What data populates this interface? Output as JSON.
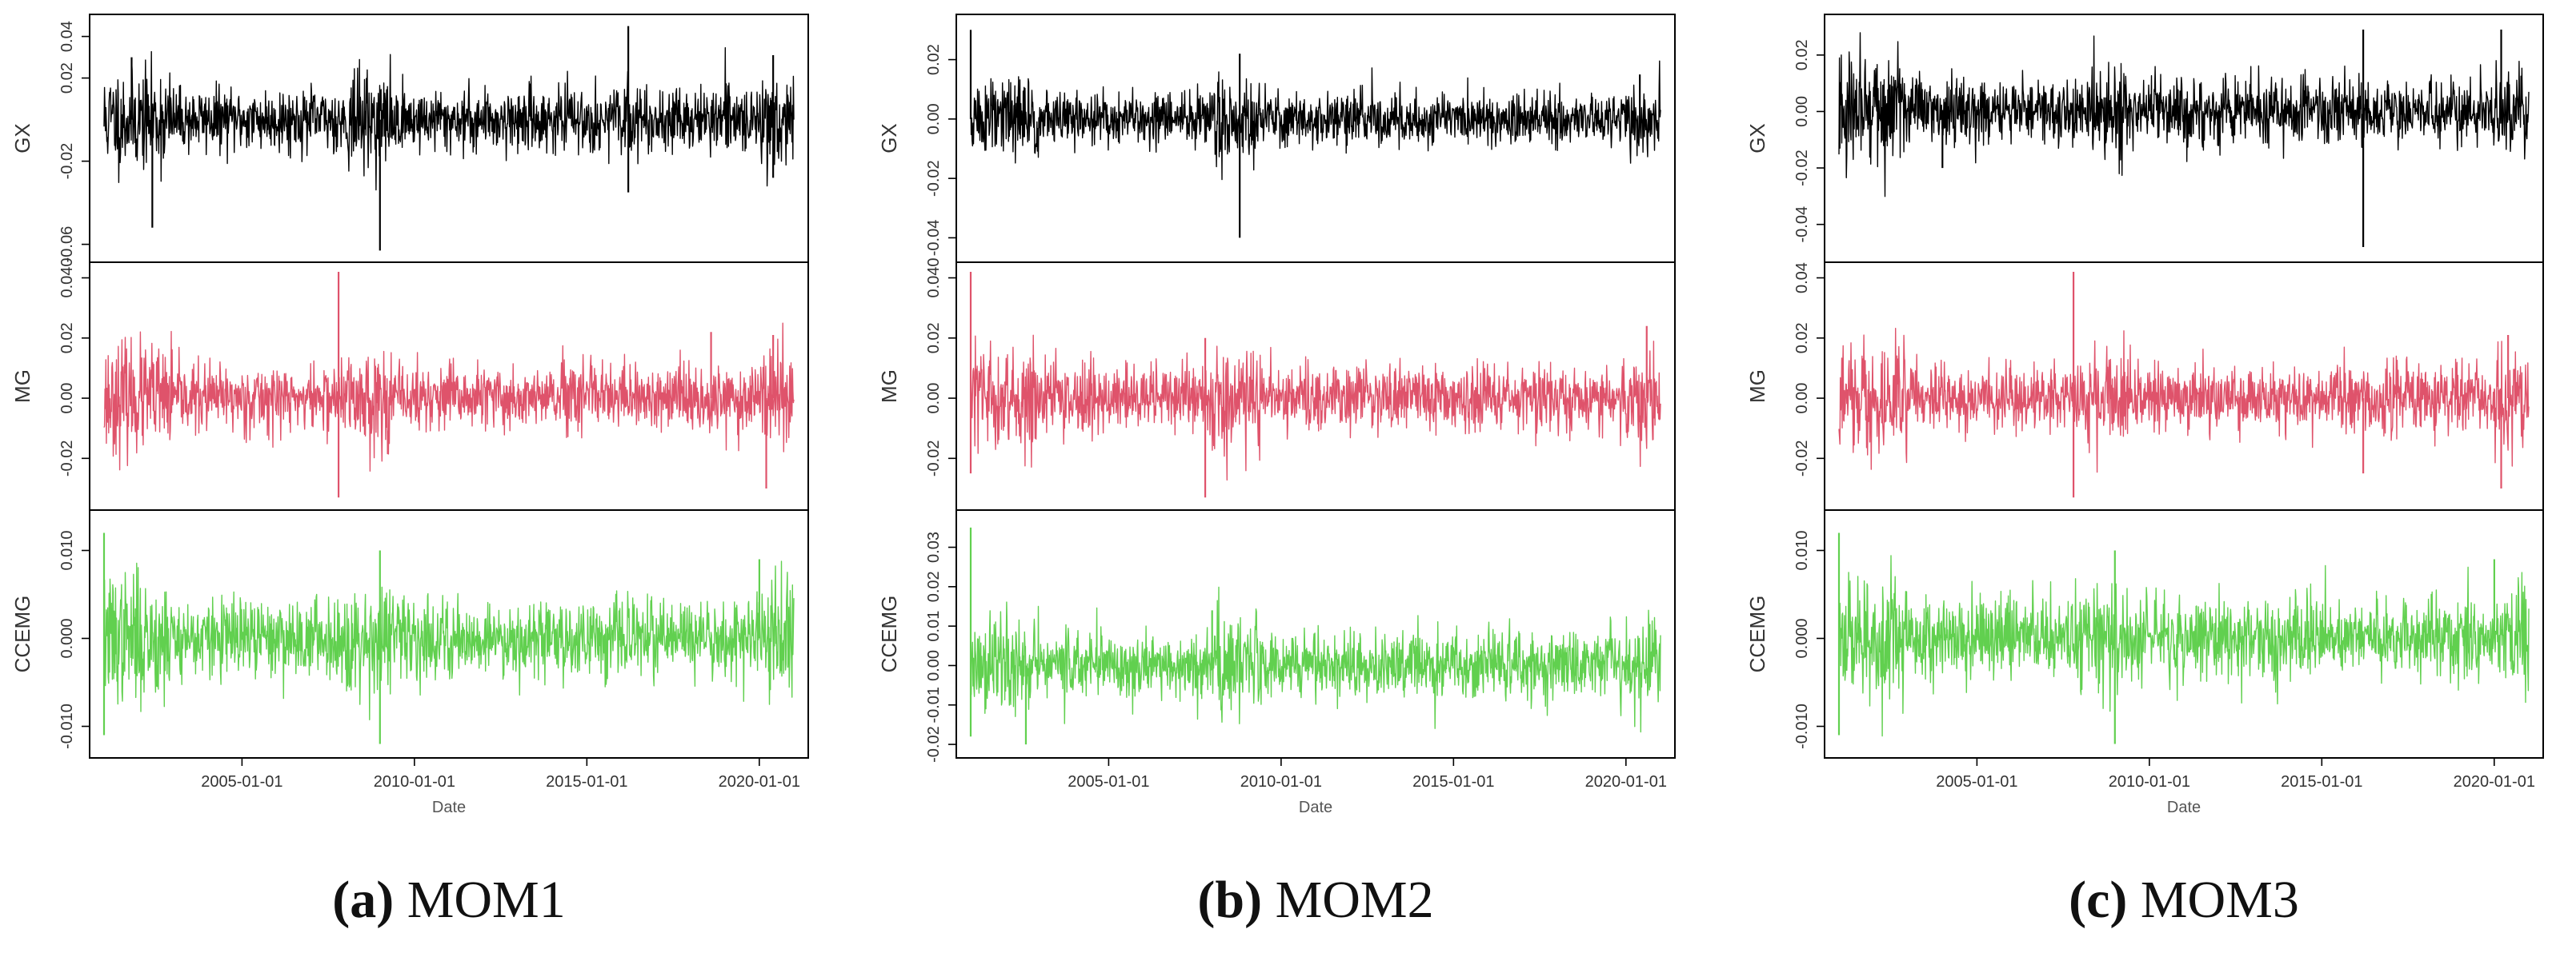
{
  "figure": {
    "panels": [
      {
        "id": "a",
        "caption_letter": "(a)",
        "caption_text": " MOM1",
        "x_ticks": [
          "2005-01-01",
          "2010-01-01",
          "2015-01-01",
          "2020-01-01"
        ],
        "x_axis_label": "Date",
        "rows": [
          {
            "label": "GX",
            "color": "#000000",
            "yrange": [
              -0.064,
              0.046
            ],
            "ticks": [
              -0.06,
              -0.02,
              0.02,
              0.04
            ],
            "tick_labels": [
              "-0.06",
              "-0.02",
              "0.02",
              "0.04"
            ]
          },
          {
            "label": "MG",
            "color": "#df536b",
            "yrange": [
              -0.034,
              0.042
            ],
            "ticks": [
              -0.02,
              0.0,
              0.02,
              0.04
            ],
            "tick_labels": [
              "-0.02",
              "0.00",
              "0.02",
              "0.040"
            ]
          },
          {
            "label": "CCEMG",
            "color": "#61d04f",
            "yrange": [
              -0.0125,
              0.0135
            ],
            "ticks": [
              -0.01,
              0.0,
              0.01
            ],
            "tick_labels": [
              "-0.010",
              "0.000",
              "0.010"
            ]
          }
        ]
      },
      {
        "id": "b",
        "caption_letter": "(b)",
        "caption_text": " MOM2",
        "x_ticks": [
          "2005-01-01",
          "2010-01-01",
          "2015-01-01",
          "2020-01-01"
        ],
        "x_axis_label": "Date",
        "rows": [
          {
            "label": "GX",
            "color": "#000000",
            "yrange": [
              -0.045,
              0.032
            ],
            "ticks": [
              -0.04,
              -0.02,
              0.0,
              0.02
            ],
            "tick_labels": [
              "-0.04",
              "-0.02",
              "0.00",
              "0.02"
            ]
          },
          {
            "label": "MG",
            "color": "#df536b",
            "yrange": [
              -0.034,
              0.042
            ],
            "ticks": [
              -0.02,
              0.0,
              0.02,
              0.04
            ],
            "tick_labels": [
              "-0.02",
              "0.00",
              "0.02",
              "0.040"
            ]
          },
          {
            "label": "CCEMG",
            "color": "#61d04f",
            "yrange": [
              -0.021,
              0.037
            ],
            "ticks": [
              -0.02,
              -0.01,
              0.0,
              0.01,
              0.02,
              0.03
            ],
            "tick_labels": [
              "-0.02",
              "-0.01",
              "0.00",
              "0.01",
              "0.02",
              "0.03"
            ]
          }
        ]
      },
      {
        "id": "c",
        "caption_letter": "(c)",
        "caption_text": " MOM3",
        "x_ticks": [
          "2005-01-01",
          "2010-01-01",
          "2015-01-01",
          "2020-01-01"
        ],
        "x_axis_label": "Date",
        "rows": [
          {
            "label": "GX",
            "color": "#000000",
            "yrange": [
              -0.05,
              0.031
            ],
            "ticks": [
              -0.04,
              -0.02,
              0.0,
              0.02
            ],
            "tick_labels": [
              "-0.04",
              "-0.02",
              "0.00",
              "0.02"
            ]
          },
          {
            "label": "MG",
            "color": "#df536b",
            "yrange": [
              -0.034,
              0.042
            ],
            "ticks": [
              -0.02,
              0.0,
              0.02,
              0.04
            ],
            "tick_labels": [
              "-0.02",
              "0.00",
              "0.02",
              "0.04"
            ]
          },
          {
            "label": "CCEMG",
            "color": "#61d04f",
            "yrange": [
              -0.0125,
              0.0135
            ],
            "ticks": [
              -0.01,
              0.0,
              0.01
            ],
            "tick_labels": [
              "-0.010",
              "0.000",
              "0.010"
            ]
          }
        ]
      }
    ]
  },
  "chart_data": [
    {
      "type": "line",
      "title": "(a) MOM1",
      "xlabel": "Date",
      "x_range": [
        "2001-01-01",
        "2021-01-01"
      ],
      "x_ticks": [
        "2005-01-01",
        "2010-01-01",
        "2015-01-01",
        "2020-01-01"
      ],
      "series": [
        {
          "name": "GX",
          "color": "#000000",
          "ylim": [
            -0.064,
            0.046
          ],
          "yticks": [
            -0.06,
            -0.02,
            0.02,
            0.04
          ],
          "noise_sd": 0.0075,
          "seed": 11,
          "spikes": [
            [
              0.04,
              0.03
            ],
            [
              0.07,
              -0.052
            ],
            [
              0.4,
              -0.063
            ],
            [
              0.76,
              0.045
            ],
            [
              0.76,
              -0.035
            ],
            [
              0.97,
              0.031
            ],
            [
              0.97,
              -0.028
            ]
          ]
        },
        {
          "name": "MG",
          "color": "#df536b",
          "ylim": [
            -0.034,
            0.042
          ],
          "yticks": [
            -0.02,
            0.0,
            0.02,
            0.04
          ],
          "noise_sd": 0.0055,
          "seed": 23,
          "spikes": [
            [
              0.34,
              0.042
            ],
            [
              0.34,
              -0.033
            ],
            [
              0.88,
              0.022
            ],
            [
              0.96,
              -0.03
            ],
            [
              0.97,
              0.021
            ]
          ]
        },
        {
          "name": "CCEMG",
          "color": "#61d04f",
          "ylim": [
            -0.0125,
            0.0135
          ],
          "yticks": [
            -0.01,
            0.0,
            0.01
          ],
          "noise_sd": 0.0022,
          "seed": 37,
          "spikes": [
            [
              0.0,
              0.012
            ],
            [
              0.0,
              -0.011
            ],
            [
              0.4,
              -0.012
            ],
            [
              0.4,
              0.01
            ],
            [
              0.95,
              0.009
            ]
          ]
        }
      ]
    },
    {
      "type": "line",
      "title": "(b) MOM2",
      "xlabel": "Date",
      "x_range": [
        "2001-01-01",
        "2021-01-01"
      ],
      "x_ticks": [
        "2005-01-01",
        "2010-01-01",
        "2015-01-01",
        "2020-01-01"
      ],
      "series": [
        {
          "name": "GX",
          "color": "#000000",
          "ylim": [
            -0.045,
            0.032
          ],
          "yticks": [
            -0.04,
            -0.02,
            0.0,
            0.02
          ],
          "noise_sd": 0.0045,
          "seed": 51,
          "spikes": [
            [
              0.0,
              0.03
            ],
            [
              0.39,
              -0.04
            ],
            [
              0.39,
              0.022
            ],
            [
              0.97,
              0.015
            ]
          ]
        },
        {
          "name": "MG",
          "color": "#df536b",
          "ylim": [
            -0.034,
            0.042
          ],
          "yticks": [
            -0.02,
            0.0,
            0.02,
            0.04
          ],
          "noise_sd": 0.0055,
          "seed": 63,
          "spikes": [
            [
              0.0,
              0.042
            ],
            [
              0.0,
              -0.025
            ],
            [
              0.34,
              -0.033
            ],
            [
              0.34,
              0.02
            ],
            [
              0.98,
              0.024
            ]
          ]
        },
        {
          "name": "CCEMG",
          "color": "#61d04f",
          "ylim": [
            -0.021,
            0.037
          ],
          "yticks": [
            -0.02,
            -0.01,
            0.0,
            0.01,
            0.02,
            0.03
          ],
          "noise_sd": 0.0042,
          "seed": 77,
          "spikes": [
            [
              0.0,
              0.035
            ],
            [
              0.0,
              -0.018
            ],
            [
              0.08,
              -0.02
            ],
            [
              0.35,
              0.014
            ]
          ]
        }
      ]
    },
    {
      "type": "line",
      "title": "(c) MOM3",
      "xlabel": "Date",
      "x_range": [
        "2001-01-01",
        "2021-01-01"
      ],
      "x_ticks": [
        "2005-01-01",
        "2010-01-01",
        "2015-01-01",
        "2020-01-01"
      ],
      "series": [
        {
          "name": "GX",
          "color": "#000000",
          "ylim": [
            -0.05,
            0.031
          ],
          "yticks": [
            -0.04,
            -0.02,
            0.0,
            0.02
          ],
          "noise_sd": 0.006,
          "seed": 91,
          "spikes": [
            [
              0.76,
              0.029
            ],
            [
              0.76,
              -0.048
            ],
            [
              0.96,
              0.029
            ],
            [
              0.15,
              -0.02
            ]
          ]
        },
        {
          "name": "MG",
          "color": "#df536b",
          "ylim": [
            -0.034,
            0.042
          ],
          "yticks": [
            -0.02,
            0.0,
            0.02,
            0.04
          ],
          "noise_sd": 0.0055,
          "seed": 103,
          "spikes": [
            [
              0.34,
              0.042
            ],
            [
              0.34,
              -0.033
            ],
            [
              0.76,
              -0.025
            ],
            [
              0.96,
              -0.03
            ],
            [
              0.97,
              0.021
            ]
          ]
        },
        {
          "name": "CCEMG",
          "color": "#61d04f",
          "ylim": [
            -0.0125,
            0.0135
          ],
          "yticks": [
            -0.01,
            0.0,
            0.01
          ],
          "noise_sd": 0.0022,
          "seed": 117,
          "spikes": [
            [
              0.0,
              0.012
            ],
            [
              0.0,
              -0.011
            ],
            [
              0.4,
              -0.012
            ],
            [
              0.4,
              0.01
            ],
            [
              0.95,
              0.009
            ]
          ]
        }
      ]
    }
  ]
}
